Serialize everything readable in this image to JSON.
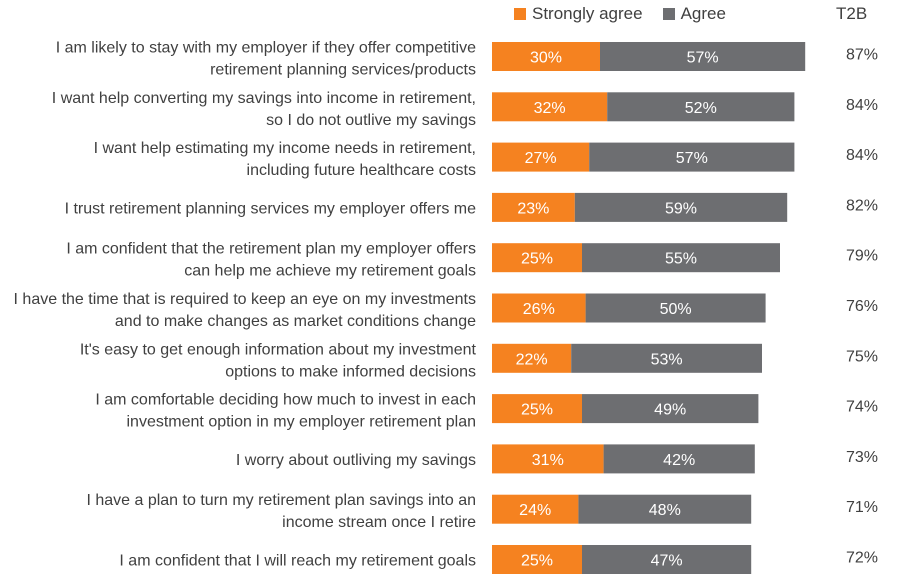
{
  "colors": {
    "strongly_agree": "#F58220",
    "agree": "#6D6E71",
    "text": "#404040",
    "bar_text": "#ffffff"
  },
  "legend": {
    "strongly_agree": "Strongly agree",
    "agree": "Agree",
    "t2b": "T2B"
  },
  "chart_data": {
    "type": "bar",
    "orientation": "horizontal",
    "stacked": true,
    "legend_position": "top",
    "categories": [
      [
        "I am likely to stay with my employer if they offer competitive",
        "retirement planning services/products"
      ],
      [
        "I want help converting my savings into income in retirement,",
        "so I do not outlive my savings"
      ],
      [
        "I want help estimating my income needs in retirement,",
        "including future healthcare costs"
      ],
      [
        "I trust retirement planning services my employer offers me"
      ],
      [
        "I am confident that the retirement plan my employer offers",
        "can help me achieve my retirement goals"
      ],
      [
        "I have the time that is required to keep an eye on my investments",
        "and to make changes as market conditions change"
      ],
      [
        "It's easy to get enough information about my investment",
        "options to make informed decisions"
      ],
      [
        "I am comfortable deciding how much to invest in each",
        "investment option in my employer retirement plan"
      ],
      [
        "I worry about outliving my savings"
      ],
      [
        "I have a plan to turn my retirement plan savings into an",
        "income stream once I retire"
      ],
      [
        "I am confident that I will reach my retirement goals"
      ]
    ],
    "series": [
      {
        "name": "Strongly agree",
        "values": [
          30,
          32,
          27,
          23,
          25,
          26,
          22,
          25,
          31,
          24,
          25
        ]
      },
      {
        "name": "Agree",
        "values": [
          57,
          52,
          57,
          59,
          55,
          50,
          53,
          49,
          42,
          48,
          47
        ]
      }
    ],
    "t2b": [
      "87%",
      "84%",
      "84%",
      "82%",
      "79%",
      "76%",
      "75%",
      "74%",
      "73%",
      "71%",
      "72%"
    ],
    "value_suffix": "%",
    "grid": false
  }
}
